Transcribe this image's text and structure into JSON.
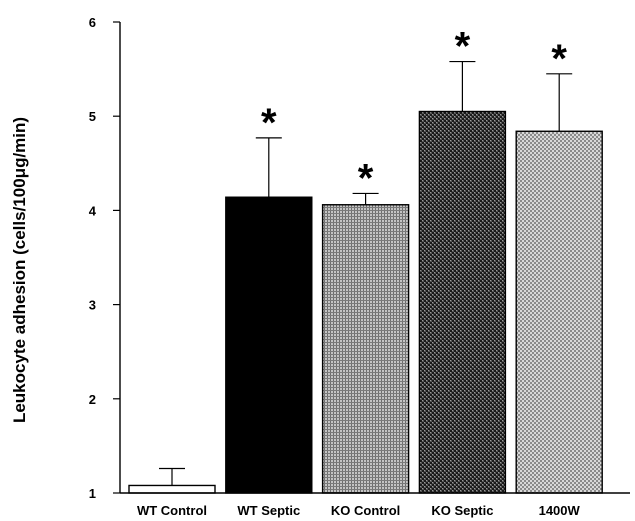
{
  "chart_data": {
    "type": "bar",
    "title": "",
    "xlabel": "",
    "ylabel": "Leukocyte adhesion (cells/100μg/min)",
    "ylim": [
      1,
      6
    ],
    "yticks": [
      1,
      2,
      3,
      4,
      5,
      6
    ],
    "categories": [
      "WT Control",
      "WT Septic",
      "KO Control",
      "KO Septic",
      "1400W"
    ],
    "values": [
      1.08,
      4.14,
      4.06,
      5.05,
      4.84
    ],
    "error": [
      0.18,
      0.63,
      0.12,
      0.53,
      0.61
    ],
    "significant": [
      false,
      true,
      true,
      true,
      true
    ],
    "significance_marker": "*",
    "fills": [
      "white",
      "black",
      "gray-grid",
      "dark-checker",
      "light-checker"
    ],
    "grid": false,
    "legend": "none"
  }
}
